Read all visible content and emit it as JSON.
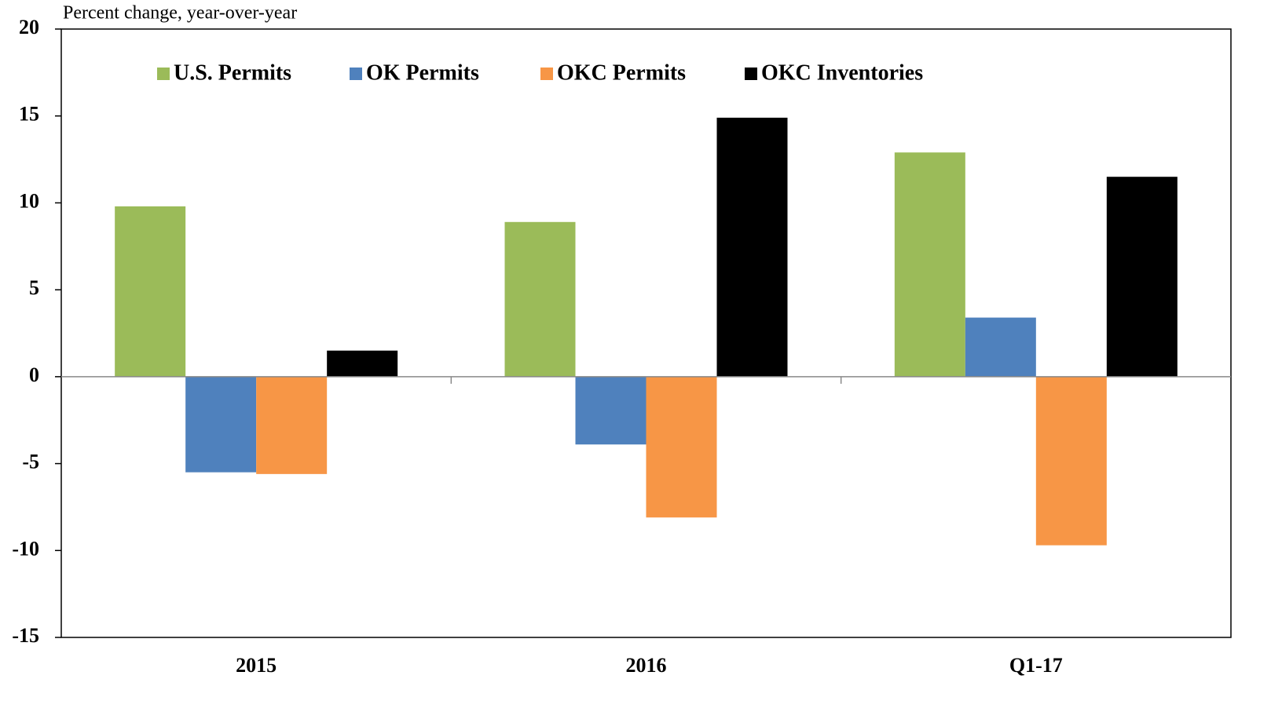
{
  "chart_data": {
    "type": "bar",
    "y_axis_label": "Percent change, year-over-year",
    "categories": [
      "2015",
      "2016",
      "Q1-17"
    ],
    "series": [
      {
        "name": "U.S. Permits",
        "color": "#9bbb59",
        "values": [
          9.8,
          8.9,
          12.9
        ]
      },
      {
        "name": "OK Permits",
        "color": "#4f81bd",
        "values": [
          -5.5,
          -3.9,
          3.4
        ]
      },
      {
        "name": "OKC Permits",
        "color": "#f79646",
        "values": [
          -5.6,
          -8.1,
          -9.7
        ]
      },
      {
        "name": "OKC Inventories",
        "color": "#000000",
        "values": [
          1.5,
          14.9,
          11.5
        ]
      }
    ],
    "ylim": [
      -15,
      20
    ],
    "yticks": [
      -15,
      -10,
      -5,
      0,
      5,
      10,
      15,
      20
    ],
    "legend": "top"
  }
}
